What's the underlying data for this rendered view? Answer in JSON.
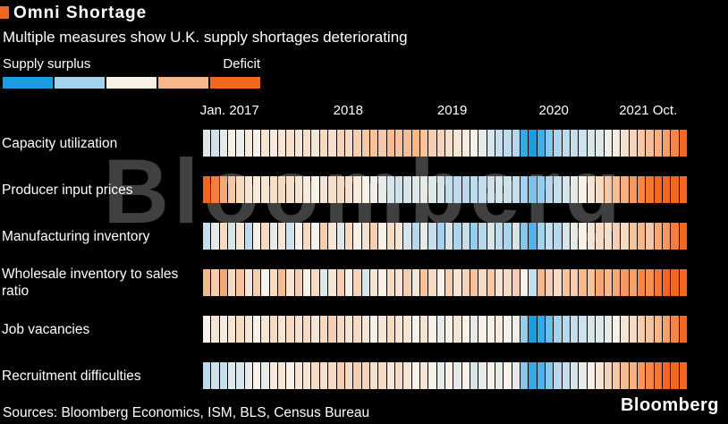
{
  "header": {
    "title": "Omni Shortage",
    "subtitle": "Multiple measures show U.K. supply shortages deteriorating"
  },
  "legend": {
    "left_label": "Supply surplus",
    "right_label": "Deficit"
  },
  "watermark": "Bloomberg",
  "footer": {
    "sources": "Sources: Bloomberg Economics, ISM, BLS, Census Bureau",
    "logo": "Bloomberg"
  },
  "colors": {
    "background": "#000000",
    "deficit_orange": "#f3661f",
    "surplus_blue": "#1b9de2",
    "neutral_cream": "#f7f1e7",
    "watermark_gray": "#404040"
  },
  "chart_data": {
    "type": "heatmap",
    "title": "Omni Shortage",
    "subtitle": "Multiple measures show U.K. supply shortages deteriorating",
    "x_axis": {
      "range": [
        "2017-01",
        "2021-10"
      ],
      "n_months": 58,
      "ticks": [
        {
          "label": "Jan. 2017",
          "pos_pct": 5.5
        },
        {
          "label": "2018",
          "pos_pct": 30
        },
        {
          "label": "2019",
          "pos_pct": 51.5
        },
        {
          "label": "2020",
          "pos_pct": 72.5
        },
        {
          "label": "2021 Oct.",
          "pos_pct": 92
        }
      ]
    },
    "value_scale": {
      "min": -1,
      "max": 1,
      "meaning": "-1 = supply surplus (blue), 0 = neutral (cream), +1 = deficit (orange); values estimated from cell colors",
      "color_stops": [
        {
          "value": -1,
          "color": "#1b9de2"
        },
        {
          "value": -0.5,
          "color": "#a3d2ee"
        },
        {
          "value": 0,
          "color": "#f7f1e7"
        },
        {
          "value": 0.5,
          "color": "#f6b78a"
        },
        {
          "value": 1,
          "color": "#f3661f"
        }
      ]
    },
    "legend": {
      "left_label": "Supply surplus",
      "right_label": "Deficit",
      "position": "top-left"
    },
    "rows": [
      {
        "label": "Capacity utilization",
        "values": [
          -0.15,
          -0.25,
          -0.1,
          0,
          -0.05,
          0.05,
          0,
          0.1,
          0.05,
          0.1,
          0.15,
          0.1,
          0.15,
          0.1,
          0.2,
          0.15,
          0.25,
          0.2,
          0.3,
          0.35,
          0.4,
          0.35,
          0.45,
          0.4,
          0.45,
          0.5,
          0.4,
          0.3,
          0.25,
          0.15,
          0.1,
          0.05,
          0,
          -0.1,
          -0.2,
          -0.3,
          -0.35,
          -0.4,
          -0.9,
          -1,
          -0.85,
          -0.6,
          -0.45,
          -0.35,
          -0.3,
          -0.25,
          -0.2,
          -0.15,
          -0.05,
          0.05,
          0.15,
          0.25,
          0.35,
          0.45,
          0.55,
          0.65,
          0.8,
          1
        ]
      },
      {
        "label": "Producer input prices",
        "values": [
          1,
          0.85,
          0.6,
          0.35,
          0.2,
          0.1,
          0.05,
          0.1,
          0.15,
          0.2,
          0.15,
          0.1,
          0.05,
          0,
          0.1,
          0.15,
          0.2,
          0.15,
          0.05,
          0,
          -0.05,
          -0.1,
          -0.2,
          -0.25,
          -0.2,
          -0.15,
          -0.1,
          -0.15,
          -0.2,
          -0.3,
          -0.35,
          -0.4,
          -0.35,
          -0.3,
          -0.25,
          -0.2,
          -0.25,
          -0.3,
          -0.5,
          -0.65,
          -0.55,
          -0.4,
          -0.3,
          -0.2,
          -0.1,
          0,
          0.1,
          0.2,
          0.35,
          0.45,
          0.55,
          0.7,
          0.8,
          0.9,
          1,
          1,
          1,
          1
        ]
      },
      {
        "label": "Manufacturing inventory",
        "values": [
          -0.3,
          -0.1,
          0.2,
          -0.2,
          0.1,
          -0.35,
          0,
          0.2,
          -0.1,
          0.1,
          -0.25,
          0,
          0.2,
          0,
          0.3,
          0.1,
          -0.15,
          0.2,
          0,
          0.15,
          0.3,
          0,
          0.2,
          0.1,
          -0.2,
          -0.4,
          -0.1,
          -0.3,
          -0.5,
          -0.2,
          -0.45,
          -0.3,
          -0.55,
          -0.4,
          -0.2,
          -0.35,
          -0.45,
          -0.2,
          -0.6,
          -0.8,
          -0.5,
          -0.3,
          -0.4,
          -0.2,
          -0.1,
          0,
          0.1,
          0.2,
          0.15,
          0.3,
          0.2,
          0.4,
          0.5,
          0.35,
          0.6,
          0.7,
          0.85,
          1
        ]
      },
      {
        "label": "Wholesale inventory to sales ratio",
        "values": [
          0.5,
          0.3,
          0.6,
          0.2,
          0.4,
          0.1,
          0.3,
          0,
          0.2,
          0.45,
          0.1,
          0.3,
          0,
          0.2,
          -0.15,
          0.1,
          0.3,
          0,
          0.25,
          -0.2,
          0.1,
          0,
          0.2,
          0.1,
          0.3,
          0.1,
          0.4,
          0.2,
          0,
          0.3,
          0.1,
          0.25,
          0.4,
          0.2,
          0.35,
          0.1,
          0.2,
          0.3,
          0,
          -0.3,
          0.5,
          0.3,
          0.2,
          0.4,
          0.3,
          0.5,
          0.4,
          0.6,
          0.5,
          0.6,
          0.7,
          0.65,
          0.8,
          0.75,
          0.9,
          1,
          1,
          1
        ]
      },
      {
        "label": "Job vacancies",
        "values": [
          0,
          0.1,
          0.05,
          0.1,
          0.2,
          0.1,
          0,
          0.1,
          0.2,
          0.1,
          0.2,
          0.15,
          0.2,
          0.1,
          0.2,
          0.3,
          0.2,
          0.1,
          0.2,
          0.1,
          0,
          0.1,
          0.2,
          0.1,
          0.1,
          0,
          0.1,
          0,
          -0.1,
          0,
          0.1,
          0,
          -0.1,
          0,
          0,
          0.05,
          0,
          -0.05,
          -0.55,
          -1,
          -0.9,
          -0.7,
          -0.5,
          -0.4,
          -0.3,
          -0.25,
          -0.2,
          -0.15,
          -0.1,
          0,
          0.1,
          0.2,
          0.3,
          0.4,
          0.5,
          0.65,
          0.8,
          1
        ]
      },
      {
        "label": "Recruitment difficulties",
        "values": [
          -0.35,
          -0.25,
          -0.3,
          -0.15,
          -0.2,
          -0.1,
          0,
          -0.1,
          0.05,
          0.1,
          0,
          0.1,
          0.1,
          0.2,
          0.15,
          0.2,
          0.3,
          0.2,
          0.3,
          0.25,
          0.15,
          0.2,
          0.1,
          0.2,
          0.1,
          0,
          0.1,
          0,
          -0.1,
          0,
          -0.1,
          0,
          -0.2,
          -0.1,
          0,
          -0.1,
          0,
          -0.1,
          -0.6,
          -0.9,
          -0.8,
          -0.6,
          -0.4,
          -0.3,
          -0.2,
          -0.1,
          0,
          0.1,
          0.25,
          0.35,
          0.45,
          0.55,
          0.7,
          0.8,
          0.9,
          1,
          1,
          1
        ]
      }
    ]
  }
}
